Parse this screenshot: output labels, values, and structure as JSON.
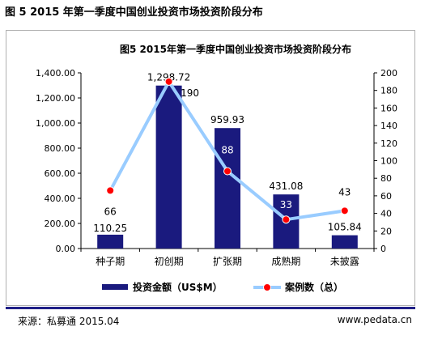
{
  "figure_title": "图 5 2015 年第一季度中国创业投资市场投资阶段分布",
  "source_note": "来源：私募通  2015.04",
  "source_url": "www.pedata.cn",
  "chart_data": {
    "type": "bar+line",
    "title": "图5 2015年第一季度中国创业投资市场投资阶段分布",
    "categories": [
      "种子期",
      "初创期",
      "扩张期",
      "成熟期",
      "未披露"
    ],
    "series": [
      {
        "name": "投资金额（US$M）",
        "type": "bar",
        "axis": "left",
        "values": [
          110.25,
          1298.72,
          959.93,
          431.08,
          105.84
        ],
        "labels": [
          "110.25",
          "1,298.72",
          "959.93",
          "431.08",
          "105.84"
        ],
        "color": "#1a1a7e"
      },
      {
        "name": "案例数（总）",
        "type": "line",
        "axis": "right",
        "values": [
          66,
          190,
          88,
          33,
          43
        ],
        "labels": [
          "66",
          "190",
          "88",
          "33",
          "43"
        ],
        "color": "#99ccff",
        "marker_color": "#ff0000"
      }
    ],
    "y_left": {
      "min": 0,
      "max": 1400,
      "ticks": [
        "0.00",
        "200.00",
        "400.00",
        "600.00",
        "800.00",
        "1,000.00",
        "1,200.00",
        "1,400.00"
      ]
    },
    "y_right": {
      "min": 0,
      "max": 200,
      "ticks": [
        "0",
        "20",
        "40",
        "60",
        "80",
        "100",
        "120",
        "140",
        "160",
        "180",
        "200"
      ]
    },
    "legend_position": "bottom",
    "grid": false
  }
}
